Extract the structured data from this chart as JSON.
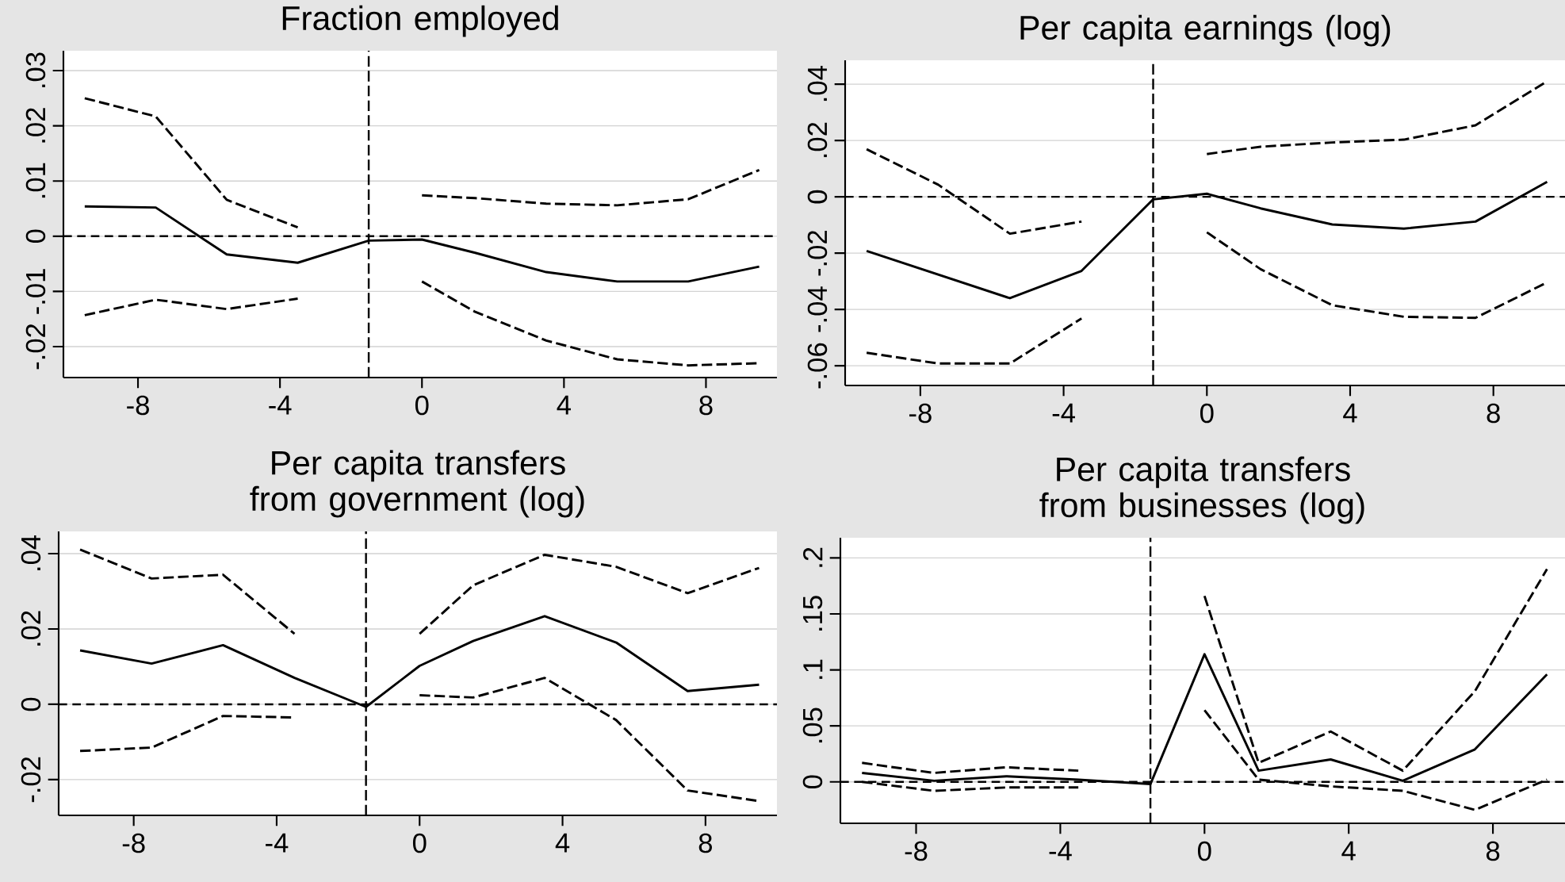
{
  "chart_data": [
    {
      "type": "line",
      "title": "Fraction employed",
      "x": [
        -9.5,
        -7.5,
        -5.5,
        -3.5,
        -1.5,
        0,
        1.5,
        3.5,
        5.5,
        7.5,
        9.5
      ],
      "xlim": [
        -10.1,
        10
      ],
      "xticks": [
        -8,
        -4,
        0,
        4,
        8
      ],
      "ylim": [
        -0.0256,
        0.0336
      ],
      "yticks": [
        {
          "value": -0.02,
          "label": "-.02"
        },
        {
          "value": -0.01,
          "label": "-.01"
        },
        0,
        {
          "value": 0.01,
          "label": ".01"
        },
        {
          "value": 0.02,
          "label": ".02"
        },
        {
          "value": 0.03,
          "label": ".03"
        }
      ],
      "grid": "y",
      "ref_lines": [
        {
          "axis": "x",
          "value": -1.5,
          "line_style": "dashed"
        },
        {
          "axis": "y",
          "value": 0,
          "line_style": "dashed"
        }
      ],
      "series": [
        {
          "color": "#000000",
          "line_style": "solid",
          "values": [
            0.0054,
            0.0052,
            -0.0033,
            -0.0048,
            -0.0008,
            -0.0006,
            -0.003,
            -0.0065,
            -0.0082,
            -0.0082,
            -0.0055
          ]
        },
        {
          "color": "#000000",
          "line_style": "dashed",
          "values": [
            0.025,
            0.0217,
            0.0066,
            0.0016,
            null,
            0.0074,
            0.0069,
            0.0059,
            0.0056,
            0.0067,
            0.012
          ]
        },
        {
          "color": "#000000",
          "line_style": "dashed",
          "values": [
            -0.0143,
            -0.0115,
            -0.0132,
            -0.0113,
            null,
            -0.0082,
            -0.0137,
            -0.0189,
            -0.0223,
            -0.0234,
            -0.023
          ]
        }
      ]
    },
    {
      "type": "line",
      "title": "Per capita earnings (log)",
      "x": [
        -9.5,
        -7.5,
        -5.5,
        -3.5,
        -1.5,
        0,
        1.5,
        3.5,
        5.5,
        7.5,
        9.5
      ],
      "xlim": [
        -10.1,
        10
      ],
      "xticks": [
        -8,
        -4,
        0,
        4,
        8
      ],
      "ylim": [
        -0.067,
        0.0485
      ],
      "yticks": [
        {
          "value": -0.06,
          "label": "-.06"
        },
        {
          "value": -0.04,
          "label": "-.04"
        },
        {
          "value": -0.02,
          "label": "-.02"
        },
        0,
        {
          "value": 0.02,
          "label": ".02"
        },
        {
          "value": 0.04,
          "label": ".04"
        }
      ],
      "grid": "y",
      "ref_lines": [
        {
          "axis": "x",
          "value": -1.5,
          "line_style": "dashed"
        },
        {
          "axis": "y",
          "value": 0,
          "line_style": "dashed"
        }
      ],
      "series": [
        {
          "color": "#000000",
          "line_style": "solid",
          "values": [
            -0.0192,
            -0.0276,
            -0.036,
            -0.0263,
            -0.0009,
            0.0011,
            -0.0041,
            -0.0098,
            -0.0113,
            -0.0088,
            0.0053
          ]
        },
        {
          "color": "#000000",
          "line_style": "dashed",
          "values": [
            0.0169,
            0.0043,
            -0.0131,
            -0.0088,
            null,
            0.0152,
            0.0178,
            0.0193,
            0.0203,
            0.0254,
            0.041
          ]
        },
        {
          "color": "#000000",
          "line_style": "dashed",
          "values": [
            -0.0554,
            -0.0592,
            -0.0592,
            -0.0432,
            null,
            -0.0126,
            -0.0257,
            -0.0385,
            -0.0426,
            -0.043,
            -0.0304
          ]
        }
      ]
    },
    {
      "type": "line",
      "title": "Per capita transfers from government (log)",
      "x": [
        -9.5,
        -7.5,
        -5.5,
        -3.5,
        -1.5,
        0,
        1.5,
        3.5,
        5.5,
        7.5,
        9.5
      ],
      "xlim": [
        -10.1,
        10
      ],
      "xticks": [
        -8,
        -4,
        0,
        4,
        8
      ],
      "ylim": [
        -0.0295,
        0.0459
      ],
      "yticks": [
        {
          "value": -0.02,
          "label": "-.02"
        },
        0,
        {
          "value": 0.02,
          "label": ".02"
        },
        {
          "value": 0.04,
          "label": ".04"
        }
      ],
      "grid": "y",
      "ref_lines": [
        {
          "axis": "x",
          "value": -1.5,
          "line_style": "dashed"
        },
        {
          "axis": "y",
          "value": 0,
          "line_style": "dashed"
        }
      ],
      "series": [
        {
          "color": "#000000",
          "line_style": "solid",
          "values": [
            0.0143,
            0.0108,
            0.0157,
            0.007,
            -0.0007,
            0.0102,
            0.0168,
            0.0234,
            0.0164,
            0.0035,
            0.0052
          ]
        },
        {
          "color": "#000000",
          "line_style": "dashed",
          "values": [
            0.0411,
            0.0334,
            0.0344,
            0.0187,
            null,
            0.0187,
            0.0316,
            0.0397,
            0.0365,
            0.0295,
            0.0362
          ]
        },
        {
          "color": "#000000",
          "line_style": "dashed",
          "values": [
            -0.0124,
            -0.0115,
            -0.0031,
            -0.0035,
            null,
            0.0024,
            0.0018,
            0.007,
            -0.0042,
            -0.0229,
            -0.0257
          ]
        }
      ]
    },
    {
      "type": "line",
      "title": "Per capita transfers from businesses (log)",
      "x": [
        -9.5,
        -7.5,
        -5.5,
        -3.5,
        -1.5,
        0,
        1.5,
        3.5,
        5.5,
        7.5,
        9.5
      ],
      "xlim": [
        -10.1,
        10
      ],
      "xticks": [
        -8,
        -4,
        0,
        4,
        8
      ],
      "ylim": [
        -0.037,
        0.218
      ],
      "yticks": [
        0,
        {
          "value": 0.05,
          "label": ".05"
        },
        {
          "value": 0.1,
          "label": ".1"
        },
        {
          "value": 0.15,
          "label": ".15"
        },
        {
          "value": 0.2,
          "label": ".2"
        }
      ],
      "grid": "y",
      "ref_lines": [
        {
          "axis": "x",
          "value": -1.5,
          "line_style": "dashed"
        },
        {
          "axis": "y",
          "value": 0,
          "line_style": "dashed"
        }
      ],
      "series": [
        {
          "color": "#000000",
          "line_style": "solid",
          "values": [
            0.008,
            0.001,
            0.005,
            0.002,
            -0.002,
            0.114,
            0.01,
            0.02,
            0.001,
            0.029,
            0.096
          ]
        },
        {
          "color": "#000000",
          "line_style": "dashed",
          "values": [
            0.017,
            0.008,
            0.013,
            0.01,
            null,
            0.166,
            0.017,
            0.045,
            0.01,
            0.081,
            0.19
          ]
        },
        {
          "color": "#000000",
          "line_style": "dashed",
          "values": [
            0,
            -0.008,
            -0.005,
            -0.005,
            null,
            0.064,
            0.002,
            -0.004,
            -0.008,
            -0.025,
            0.002
          ]
        }
      ]
    }
  ]
}
